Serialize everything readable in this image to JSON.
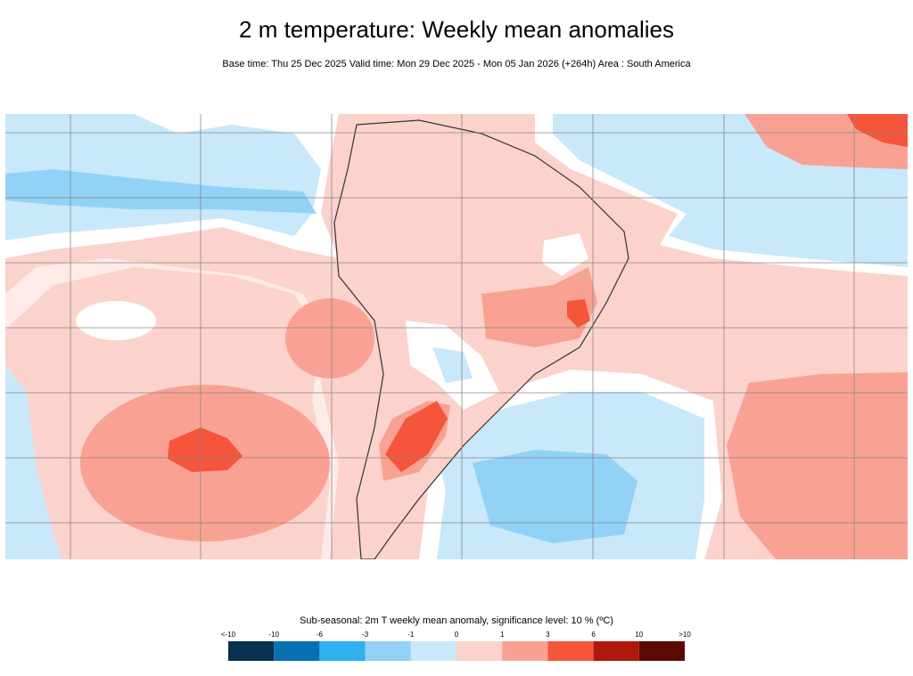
{
  "header": {
    "title": "2 m temperature: Weekly mean anomalies",
    "subtitle": "Base time: Thu 25 Dec 2025 Valid time: Mon 29 Dec 2025 - Mon 05 Jan 2026 (+264h) Area : South America"
  },
  "legend": {
    "title": "Sub-seasonal: 2m T weekly mean anomaly, significance level: 10 % (ºC)",
    "labels": [
      "<-10",
      "-10",
      "-6",
      "-3",
      "-1",
      "0",
      "1",
      "3",
      "6",
      "10",
      ">10"
    ],
    "colors": [
      "#08304f",
      "#0571b0",
      "#2fb0f0",
      "#92d2f7",
      "#c9e8fa",
      "#fcd2cc",
      "#f9a293",
      "#f5553a",
      "#b0180c",
      "#5c0a06"
    ]
  }
}
